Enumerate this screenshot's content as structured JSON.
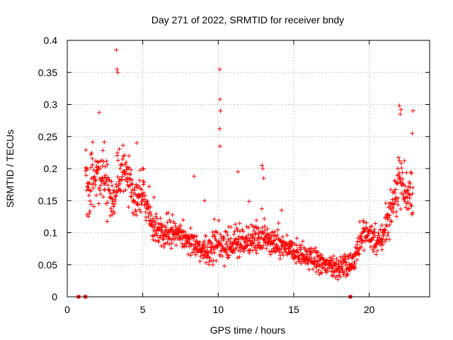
{
  "chart_data": {
    "type": "scatter",
    "title": "Day 271 of 2022, SRMTID for receiver bndy",
    "xlabel": "GPS time / hours",
    "ylabel": "SRMTID / TECUs",
    "xlim": [
      0,
      24
    ],
    "ylim": [
      0,
      0.4
    ],
    "xticks": [
      0,
      5,
      10,
      15,
      20
    ],
    "xtick_labels": [
      "0",
      "5",
      "10",
      "15",
      "20"
    ],
    "yticks": [
      0,
      0.05,
      0.1,
      0.15,
      0.2,
      0.25,
      0.3,
      0.35,
      0.4
    ],
    "ytick_labels": [
      "0",
      "0.05",
      "0.1",
      "0.15",
      "0.2",
      "0.25",
      "0.3",
      "0.35",
      "0.4"
    ],
    "grid": true,
    "marker": "+",
    "color": "#ff0000",
    "zero_value_markers": {
      "x": [
        0.75,
        1.2,
        18.75
      ],
      "y": [
        0,
        0,
        0
      ]
    },
    "series": [
      {
        "name": "SRMTID",
        "envelope": {
          "description": "Piecewise profile of the dense '+' cloud: hour, typical level, typical spread",
          "hours": [
            1.2,
            1.5,
            2.0,
            2.5,
            3.0,
            3.4,
            3.8,
            4.2,
            4.6,
            5.0,
            5.5,
            6.0,
            7.0,
            8.0,
            9.0,
            10.0,
            11.0,
            12.0,
            13.0,
            14.0,
            15.0,
            16.0,
            17.0,
            18.0,
            18.8,
            19.5,
            20.0,
            20.5,
            21.0,
            21.5,
            22.0,
            22.5,
            22.9
          ],
          "level": [
            0.18,
            0.16,
            0.2,
            0.19,
            0.14,
            0.19,
            0.21,
            0.17,
            0.15,
            0.16,
            0.12,
            0.1,
            0.1,
            0.09,
            0.07,
            0.08,
            0.08,
            0.09,
            0.09,
            0.08,
            0.07,
            0.06,
            0.05,
            0.045,
            0.05,
            0.09,
            0.1,
            0.08,
            0.1,
            0.14,
            0.19,
            0.16,
            0.15
          ],
          "spread": [
            0.06,
            0.05,
            0.05,
            0.05,
            0.05,
            0.06,
            0.05,
            0.05,
            0.04,
            0.03,
            0.03,
            0.03,
            0.025,
            0.025,
            0.025,
            0.03,
            0.025,
            0.03,
            0.03,
            0.025,
            0.025,
            0.02,
            0.02,
            0.02,
            0.02,
            0.025,
            0.03,
            0.025,
            0.03,
            0.04,
            0.05,
            0.04,
            0.04
          ],
          "density_per_hour": 60
        },
        "highlights": {
          "x": [
            3.25,
            3.3,
            3.35,
            10.1,
            10.12,
            10.15,
            10.1,
            10.12,
            12.9,
            12.95,
            13.0,
            22.0,
            22.1,
            22.05,
            22.9,
            22.85,
            11.3,
            8.4,
            9.1,
            14.2,
            5.0,
            4.6
          ],
          "y": [
            0.385,
            0.355,
            0.35,
            0.355,
            0.308,
            0.29,
            0.262,
            0.235,
            0.205,
            0.2,
            0.185,
            0.298,
            0.292,
            0.285,
            0.29,
            0.255,
            0.195,
            0.188,
            0.15,
            0.135,
            0.2,
            0.24
          ]
        }
      }
    ]
  }
}
